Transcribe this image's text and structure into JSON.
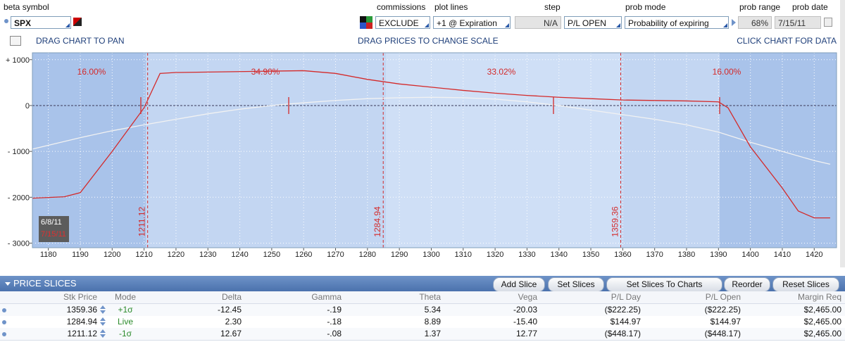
{
  "toolbar": {
    "beta_symbol": {
      "label": "beta symbol",
      "value": "SPX"
    },
    "commissions": {
      "label": "commissions",
      "value": "EXCLUDE"
    },
    "plot_lines": {
      "label": "plot lines",
      "value": "+1 @ Expiration"
    },
    "step": {
      "label": "step",
      "value": "N/A"
    },
    "pl_mode": {
      "value": "P/L OPEN"
    },
    "prob_mode": {
      "label": "prob mode",
      "value": "Probability of expiring"
    },
    "prob_range": {
      "label": "prob range",
      "value": "68%"
    },
    "prob_date": {
      "label": "prob date",
      "value": "7/15/11"
    }
  },
  "hints": [
    "DRAG CHART TO PAN",
    "DRAG PRICES TO CHANGE SCALE",
    "CLICK CHART FOR DATA"
  ],
  "chart_data": {
    "type": "line",
    "xlim": [
      1175,
      1427
    ],
    "ylim": [
      -3100,
      1150
    ],
    "xticks": [
      1180,
      1190,
      1200,
      1210,
      1220,
      1230,
      1240,
      1250,
      1260,
      1270,
      1280,
      1290,
      1300,
      1310,
      1320,
      1330,
      1340,
      1350,
      1360,
      1370,
      1380,
      1390,
      1400,
      1410,
      1420
    ],
    "yticks": [
      {
        "value": 1000,
        "label": "+ 1000"
      },
      0,
      {
        "value": -1000,
        "label": "- 1000"
      },
      {
        "value": -2000,
        "label": "- 2000"
      },
      {
        "value": -3000,
        "label": "- 3000"
      }
    ],
    "grid": true,
    "series": [
      {
        "color": "#d42a2a",
        "x": [
          1175,
          1185,
          1190,
          1200,
          1210,
          1215,
          1220,
          1250,
          1260,
          1270,
          1280,
          1290,
          1300,
          1310,
          1320,
          1330,
          1340,
          1350,
          1360,
          1380,
          1390,
          1393,
          1400,
          1410,
          1415,
          1420,
          1425
        ],
        "values": [
          -2020,
          -1990,
          -1900,
          -1000,
          -50,
          700,
          720,
          750,
          760,
          700,
          570,
          470,
          400,
          330,
          270,
          220,
          180,
          150,
          120,
          100,
          80,
          -50,
          -900,
          -1800,
          -2300,
          -2450,
          -2450
        ]
      },
      {
        "color": "#f2f2f2",
        "x": [
          1175,
          1190,
          1200,
          1210,
          1220,
          1230,
          1240,
          1250,
          1260,
          1270,
          1280,
          1290,
          1300,
          1310,
          1320,
          1330,
          1340,
          1350,
          1360,
          1370,
          1380,
          1390,
          1400,
          1410,
          1420,
          1425
        ],
        "values": [
          -950,
          -700,
          -550,
          -420,
          -300,
          -180,
          -80,
          0,
          60,
          110,
          150,
          170,
          180,
          170,
          140,
          80,
          0,
          -100,
          -200,
          -300,
          -420,
          -580,
          -800,
          -1000,
          -1200,
          -1280
        ]
      }
    ],
    "slices": [
      1211.12,
      1284.94,
      1359.36
    ],
    "annotations": [
      "16.00%",
      "34.90%",
      "33.02%",
      "16.00%"
    ],
    "date_labels": [
      "6/8/11",
      "7/15/11"
    ]
  },
  "panel": {
    "title": "PRICE SLICES",
    "buttons": [
      "Add Slice",
      "Set Slices",
      "Set Slices To Charts",
      "Reorder",
      "Reset Slices"
    ]
  },
  "table": {
    "header": [
      "Stk Price",
      "Mode",
      "Delta",
      "Gamma",
      "Theta",
      "Vega",
      "P/L Day",
      "P/L Open",
      "Margin Req"
    ],
    "rows": [
      [
        "1359.36",
        "+1σ",
        "-12.45",
        "-.19",
        "5.34",
        "-20.03",
        "($222.25)",
        "($222.25)",
        "$2,465.00"
      ],
      [
        "1284.94",
        "Live",
        "2.30",
        "-.18",
        "8.89",
        "-15.40",
        "$144.97",
        "$144.97",
        "$2,465.00"
      ],
      [
        "1211.12",
        "-1σ",
        "12.67",
        "-.08",
        "1.37",
        "12.77",
        "($448.17)",
        "($448.17)",
        "$2,465.00"
      ]
    ]
  }
}
